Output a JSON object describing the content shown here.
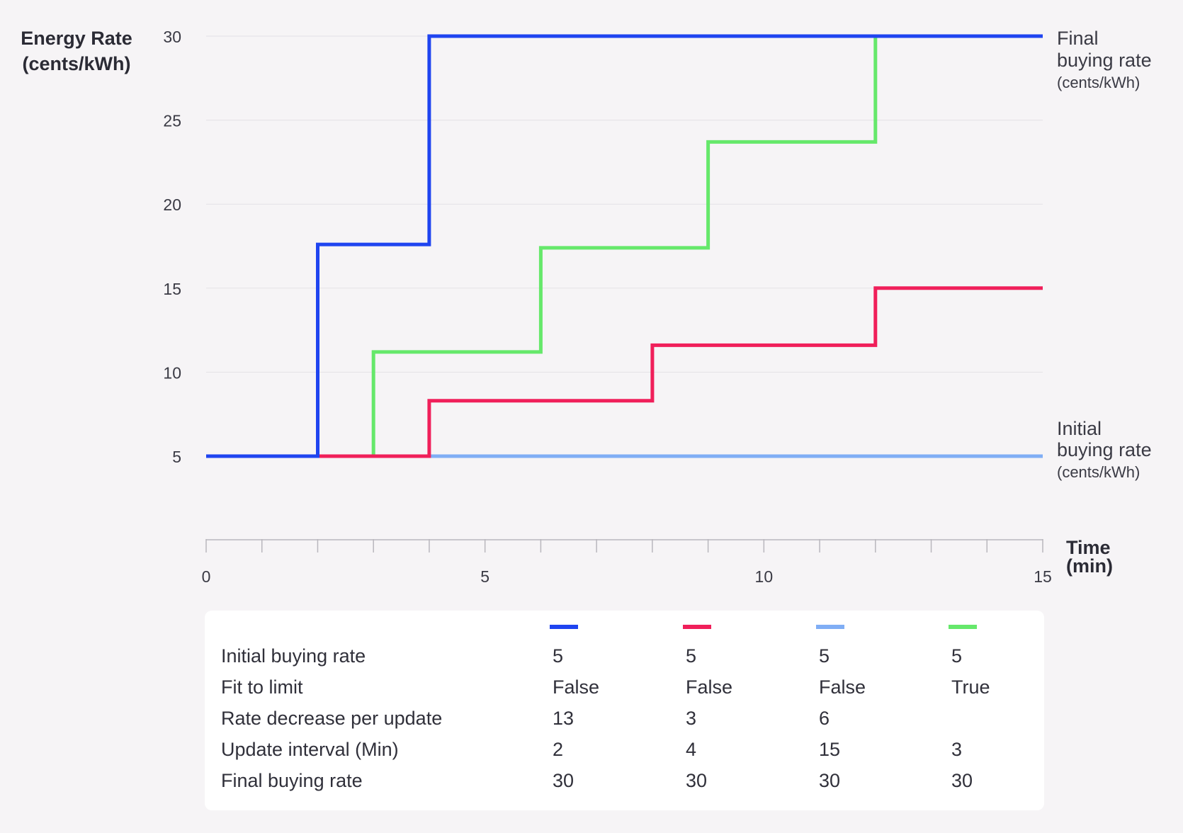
{
  "chart_data": {
    "type": "line",
    "step": true,
    "ylabel": [
      "Energy Rate",
      "(cents/kWh)"
    ],
    "xlabel": [
      "Time",
      "(min)"
    ],
    "xlim": [
      0,
      15
    ],
    "ylim": [
      0,
      30
    ],
    "x_ticks": [
      0,
      5,
      10,
      15
    ],
    "y_ticks": [
      5,
      10,
      15,
      20,
      25,
      30
    ],
    "grid": "horizontal",
    "annotations": {
      "final": [
        "Final",
        "buying rate",
        "(cents/kWh)"
      ],
      "initial": [
        "Initial",
        "buying rate",
        "(cents/kWh)"
      ]
    },
    "series": [
      {
        "color": "#1f44f0",
        "x": [
          0,
          2,
          2,
          4,
          4,
          15
        ],
        "y": [
          5,
          5,
          17.6,
          17.6,
          30,
          30
        ]
      },
      {
        "color": "#f01f5a",
        "x": [
          0,
          4,
          4,
          8,
          8,
          12,
          12,
          15
        ],
        "y": [
          5,
          5,
          8.3,
          8.3,
          11.6,
          11.6,
          15,
          15
        ]
      },
      {
        "color": "#80aef5",
        "x": [
          0,
          15
        ],
        "y": [
          5,
          5
        ]
      },
      {
        "color": "#66e86b",
        "x": [
          0,
          3,
          3,
          6,
          6,
          9,
          9,
          12,
          12,
          15
        ],
        "y": [
          5,
          5,
          11.2,
          11.2,
          17.4,
          17.4,
          23.7,
          23.7,
          30,
          30
        ]
      }
    ]
  },
  "table": {
    "row_labels": [
      "Initial buying rate",
      "Fit to limit",
      "Rate decrease per update",
      "Update interval (Min)",
      "Final buying rate"
    ],
    "columns": [
      {
        "color": "#1f44f0",
        "values": [
          "5",
          "False",
          "13",
          "2",
          "30"
        ]
      },
      {
        "color": "#f01f5a",
        "values": [
          "5",
          "False",
          "3",
          "4",
          "30"
        ]
      },
      {
        "color": "#80aef5",
        "values": [
          "5",
          "False",
          "6",
          "15",
          "30"
        ]
      },
      {
        "color": "#66e86b",
        "values": [
          "5",
          "True",
          "",
          "3",
          "30"
        ]
      }
    ]
  }
}
